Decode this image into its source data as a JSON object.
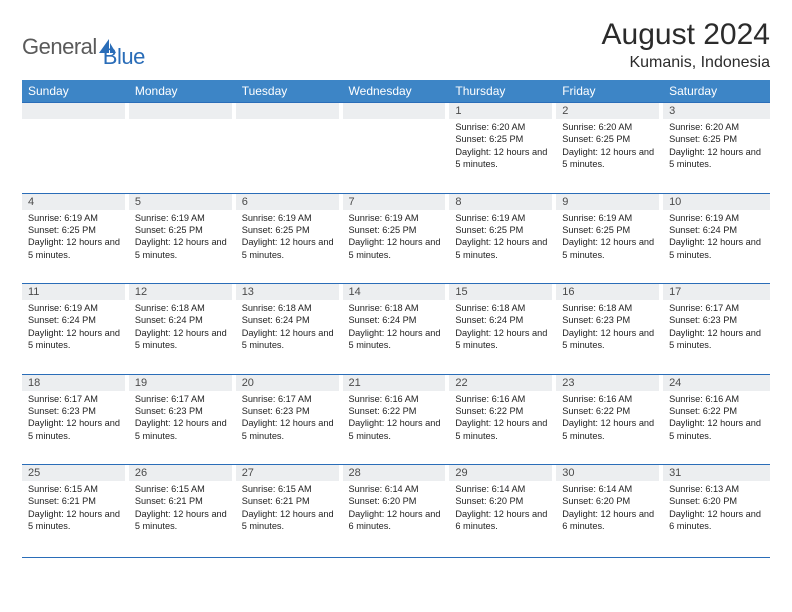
{
  "brand": {
    "general": "General",
    "blue": "Blue"
  },
  "title": {
    "month": "August 2024",
    "location": "Kumanis, Indonesia"
  },
  "colors": {
    "header_bg": "#3d85c6",
    "header_text": "#ffffff",
    "rule": "#2a6db8",
    "daynum_bg": "#eceef0",
    "body_text": "#232323",
    "logo_blue": "#2a6db8",
    "logo_gray": "#5a5a5a"
  },
  "weekdays": [
    "Sunday",
    "Monday",
    "Tuesday",
    "Wednesday",
    "Thursday",
    "Friday",
    "Saturday"
  ],
  "leading_blanks": 4,
  "days": [
    {
      "n": 1,
      "sunrise": "6:20 AM",
      "sunset": "6:25 PM",
      "daylight": "12 hours and 5 minutes."
    },
    {
      "n": 2,
      "sunrise": "6:20 AM",
      "sunset": "6:25 PM",
      "daylight": "12 hours and 5 minutes."
    },
    {
      "n": 3,
      "sunrise": "6:20 AM",
      "sunset": "6:25 PM",
      "daylight": "12 hours and 5 minutes."
    },
    {
      "n": 4,
      "sunrise": "6:19 AM",
      "sunset": "6:25 PM",
      "daylight": "12 hours and 5 minutes."
    },
    {
      "n": 5,
      "sunrise": "6:19 AM",
      "sunset": "6:25 PM",
      "daylight": "12 hours and 5 minutes."
    },
    {
      "n": 6,
      "sunrise": "6:19 AM",
      "sunset": "6:25 PM",
      "daylight": "12 hours and 5 minutes."
    },
    {
      "n": 7,
      "sunrise": "6:19 AM",
      "sunset": "6:25 PM",
      "daylight": "12 hours and 5 minutes."
    },
    {
      "n": 8,
      "sunrise": "6:19 AM",
      "sunset": "6:25 PM",
      "daylight": "12 hours and 5 minutes."
    },
    {
      "n": 9,
      "sunrise": "6:19 AM",
      "sunset": "6:25 PM",
      "daylight": "12 hours and 5 minutes."
    },
    {
      "n": 10,
      "sunrise": "6:19 AM",
      "sunset": "6:24 PM",
      "daylight": "12 hours and 5 minutes."
    },
    {
      "n": 11,
      "sunrise": "6:19 AM",
      "sunset": "6:24 PM",
      "daylight": "12 hours and 5 minutes."
    },
    {
      "n": 12,
      "sunrise": "6:18 AM",
      "sunset": "6:24 PM",
      "daylight": "12 hours and 5 minutes."
    },
    {
      "n": 13,
      "sunrise": "6:18 AM",
      "sunset": "6:24 PM",
      "daylight": "12 hours and 5 minutes."
    },
    {
      "n": 14,
      "sunrise": "6:18 AM",
      "sunset": "6:24 PM",
      "daylight": "12 hours and 5 minutes."
    },
    {
      "n": 15,
      "sunrise": "6:18 AM",
      "sunset": "6:24 PM",
      "daylight": "12 hours and 5 minutes."
    },
    {
      "n": 16,
      "sunrise": "6:18 AM",
      "sunset": "6:23 PM",
      "daylight": "12 hours and 5 minutes."
    },
    {
      "n": 17,
      "sunrise": "6:17 AM",
      "sunset": "6:23 PM",
      "daylight": "12 hours and 5 minutes."
    },
    {
      "n": 18,
      "sunrise": "6:17 AM",
      "sunset": "6:23 PM",
      "daylight": "12 hours and 5 minutes."
    },
    {
      "n": 19,
      "sunrise": "6:17 AM",
      "sunset": "6:23 PM",
      "daylight": "12 hours and 5 minutes."
    },
    {
      "n": 20,
      "sunrise": "6:17 AM",
      "sunset": "6:23 PM",
      "daylight": "12 hours and 5 minutes."
    },
    {
      "n": 21,
      "sunrise": "6:16 AM",
      "sunset": "6:22 PM",
      "daylight": "12 hours and 5 minutes."
    },
    {
      "n": 22,
      "sunrise": "6:16 AM",
      "sunset": "6:22 PM",
      "daylight": "12 hours and 5 minutes."
    },
    {
      "n": 23,
      "sunrise": "6:16 AM",
      "sunset": "6:22 PM",
      "daylight": "12 hours and 5 minutes."
    },
    {
      "n": 24,
      "sunrise": "6:16 AM",
      "sunset": "6:22 PM",
      "daylight": "12 hours and 5 minutes."
    },
    {
      "n": 25,
      "sunrise": "6:15 AM",
      "sunset": "6:21 PM",
      "daylight": "12 hours and 5 minutes."
    },
    {
      "n": 26,
      "sunrise": "6:15 AM",
      "sunset": "6:21 PM",
      "daylight": "12 hours and 5 minutes."
    },
    {
      "n": 27,
      "sunrise": "6:15 AM",
      "sunset": "6:21 PM",
      "daylight": "12 hours and 5 minutes."
    },
    {
      "n": 28,
      "sunrise": "6:14 AM",
      "sunset": "6:20 PM",
      "daylight": "12 hours and 6 minutes."
    },
    {
      "n": 29,
      "sunrise": "6:14 AM",
      "sunset": "6:20 PM",
      "daylight": "12 hours and 6 minutes."
    },
    {
      "n": 30,
      "sunrise": "6:14 AM",
      "sunset": "6:20 PM",
      "daylight": "12 hours and 6 minutes."
    },
    {
      "n": 31,
      "sunrise": "6:13 AM",
      "sunset": "6:20 PM",
      "daylight": "12 hours and 6 minutes."
    }
  ],
  "labels": {
    "sunrise": "Sunrise: ",
    "sunset": "Sunset: ",
    "daylight": "Daylight: "
  }
}
